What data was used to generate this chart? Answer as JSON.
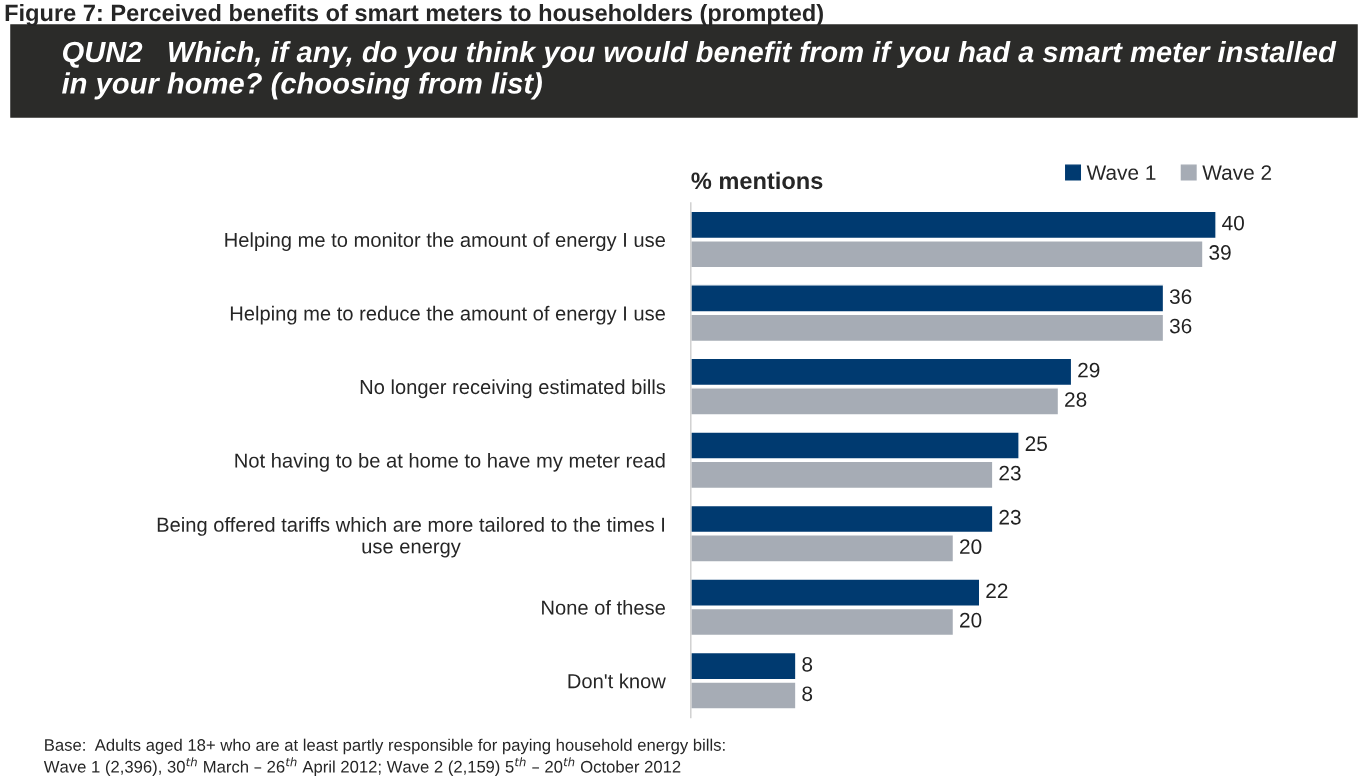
{
  "chart_data": {
    "type": "bar",
    "orientation": "horizontal",
    "title": "Figure 7: Perceived benefits of smart meters to householders (prompted)",
    "subtitle": "QUN2   Which, if any, do you think you would benefit from if you had a smart meter installed in your home? (choosing from list)",
    "xlabel": "% mentions",
    "categories": [
      "Helping me to monitor the amount of energy I use",
      "Helping me to reduce the amount of energy I use",
      "No longer receiving estimated bills",
      "Not having to be at home to have my meter read",
      "Being offered tariffs which are more tailored to the times I\nuse energy",
      "None of these",
      "Don't know"
    ],
    "series": [
      {
        "name": "Wave 1",
        "color": "#003a70",
        "values": [
          40,
          36,
          29,
          25,
          23,
          22,
          8
        ]
      },
      {
        "name": "Wave 2",
        "color": "#a6acb5",
        "values": [
          39,
          36,
          28,
          23,
          20,
          20,
          8
        ]
      }
    ],
    "data_labels": true,
    "legend": "top right",
    "grid": false,
    "annotations": [
      "Base:  Adults aged 18+ who are at least partly responsible for paying household energy bills:\nWave 1 (2,396), 30$^{th}$ March – 26$^{th}$ April 2012; Wave 2 (2,159) 5$^{th}$ – 20$^{th}$ October 2012"
    ]
  }
}
